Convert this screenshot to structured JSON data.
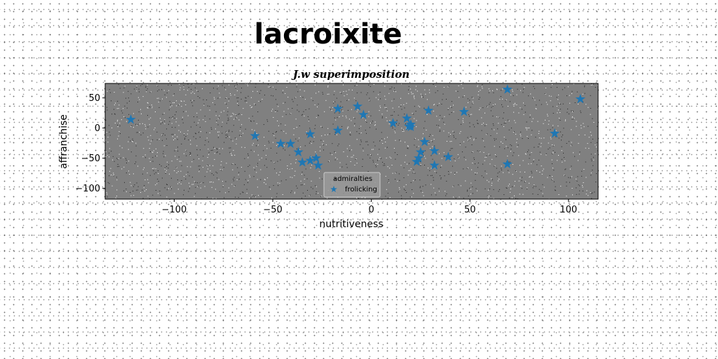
{
  "figure_title": "lacroixite",
  "chart_data": {
    "type": "scatter",
    "title": "J.w superimposition",
    "xlabel": "nutritiveness",
    "ylabel": "affranchise",
    "xlim": [
      -135,
      115
    ],
    "ylim": [
      -118,
      74
    ],
    "xticks": [
      -100,
      -50,
      0,
      50,
      100
    ],
    "xtick_labels": [
      "−100",
      "−50",
      "0",
      "50",
      "100"
    ],
    "yticks": [
      50,
      0,
      -50,
      -100
    ],
    "ytick_labels": [
      "50",
      "0",
      "−50",
      "−100"
    ],
    "grid": false,
    "legend_position": "lower-center",
    "background_color": "#808080",
    "series": [
      {
        "name": "admiralties",
        "marker": "point",
        "color": "#444444",
        "noise": true
      },
      {
        "name": "frolicking",
        "marker": "star",
        "color": "#1f77b4",
        "points": [
          [
            -122,
            14
          ],
          [
            -59,
            -13
          ],
          [
            -46,
            -26
          ],
          [
            -41,
            -26
          ],
          [
            -37,
            -40
          ],
          [
            -35,
            -57
          ],
          [
            -31,
            -10
          ],
          [
            -31,
            -54
          ],
          [
            -28,
            -50
          ],
          [
            -27,
            -62
          ],
          [
            -17,
            32
          ],
          [
            -17,
            -4
          ],
          [
            -7,
            36
          ],
          [
            -4,
            22
          ],
          [
            11,
            8
          ],
          [
            18,
            16
          ],
          [
            19,
            3
          ],
          [
            20,
            6
          ],
          [
            20,
            2
          ],
          [
            23,
            -56
          ],
          [
            24,
            -50
          ],
          [
            25,
            -40
          ],
          [
            27,
            -23
          ],
          [
            29,
            29
          ],
          [
            32,
            -62
          ],
          [
            32,
            -38
          ],
          [
            39,
            -48
          ],
          [
            47,
            27
          ],
          [
            69,
            64
          ],
          [
            69,
            -60
          ],
          [
            93,
            -9
          ],
          [
            106,
            48
          ]
        ]
      }
    ]
  }
}
